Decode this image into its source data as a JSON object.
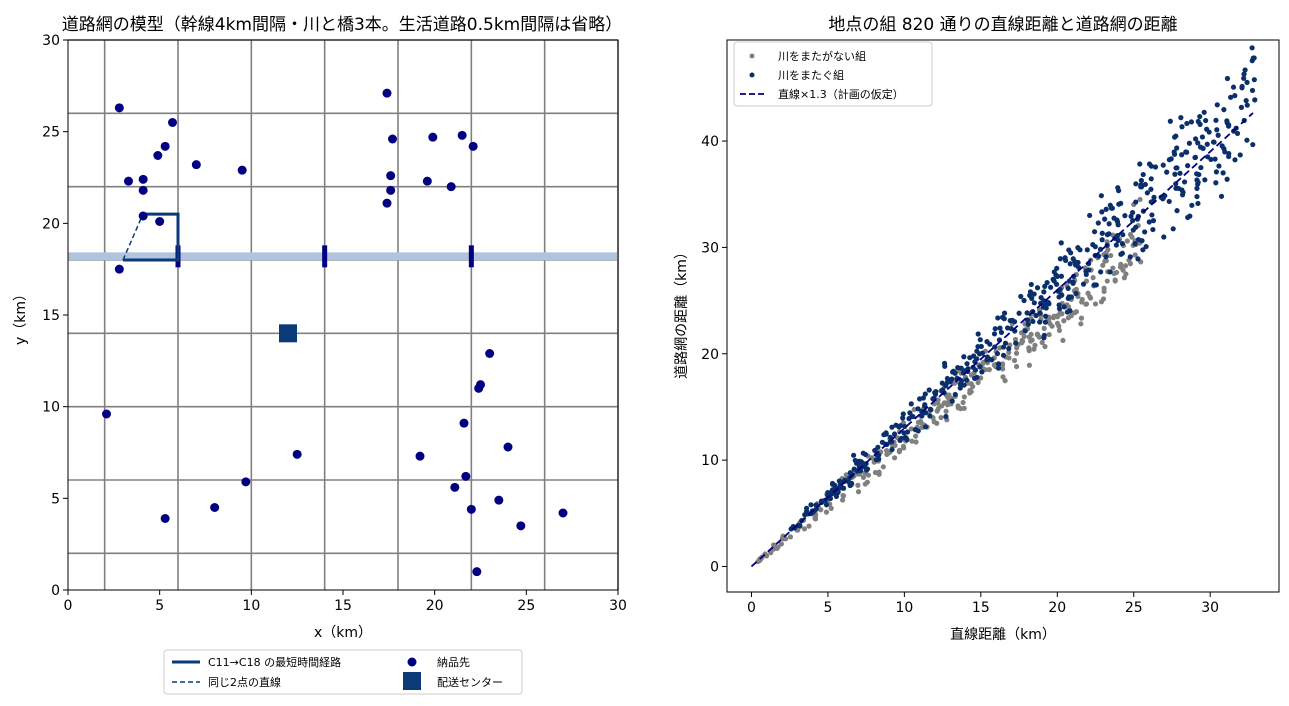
{
  "chart_data": [
    {
      "type": "scatter",
      "title": "道路網の模型（幹線4km間隔・川と橋3本。生活道路0.5km間隔は省略）",
      "xlabel": "x（km）",
      "ylabel": "y（km）",
      "xlim": [
        0,
        30
      ],
      "ylim": [
        0,
        30
      ],
      "xticks": [
        "0",
        "5",
        "10",
        "15",
        "20",
        "25",
        "30"
      ],
      "yticks": [
        "0",
        "5",
        "10",
        "15",
        "20",
        "25",
        "30"
      ],
      "grid": false,
      "legend_position": "below",
      "colors": {
        "road": "#808080",
        "river": "#b0c4de",
        "route": "#0a3a78",
        "points": "#000080",
        "center": "#0a3a78"
      },
      "roads": {
        "x": [
          2,
          6,
          10,
          14,
          18,
          22,
          26,
          30
        ],
        "y": [
          2,
          6,
          10,
          14,
          18,
          22,
          26,
          30
        ]
      },
      "river_y": 18.2,
      "bridges_x": [
        6,
        14,
        22
      ],
      "route": {
        "name": "C11→C18 の最短時間経路",
        "points": [
          [
            3,
            18
          ],
          [
            6,
            18
          ],
          [
            6,
            20.5
          ],
          [
            4,
            20.5
          ],
          [
            4,
            20.3
          ]
        ]
      },
      "straight_line": {
        "name": "同じ2点の直線",
        "points": [
          [
            3,
            18
          ],
          [
            4,
            20.3
          ]
        ]
      },
      "center": {
        "name": "配送センター",
        "x": 12,
        "y": 14
      },
      "deliveries": {
        "name": "納品先",
        "points": [
          [
            2.8,
            26.3
          ],
          [
            3.3,
            22.3
          ],
          [
            4.1,
            22.4
          ],
          [
            4.1,
            21.8
          ],
          [
            4.1,
            20.4
          ],
          [
            4.9,
            23.7
          ],
          [
            5.3,
            24.2
          ],
          [
            5.7,
            25.5
          ],
          [
            5,
            20.1
          ],
          [
            7,
            23.2
          ],
          [
            9.5,
            22.9
          ],
          [
            2.8,
            17.5
          ],
          [
            17.4,
            27.1
          ],
          [
            17.7,
            24.6
          ],
          [
            17.6,
            22.6
          ],
          [
            17.6,
            21.8
          ],
          [
            17.4,
            21.1
          ],
          [
            19.6,
            22.3
          ],
          [
            19.9,
            24.7
          ],
          [
            20.9,
            22
          ],
          [
            21.5,
            24.8
          ],
          [
            22.1,
            24.2
          ],
          [
            2.1,
            9.6
          ],
          [
            5.3,
            3.9
          ],
          [
            8,
            4.5
          ],
          [
            9.7,
            5.9
          ],
          [
            12.5,
            7.4
          ],
          [
            19.2,
            7.3
          ],
          [
            21.1,
            5.6
          ],
          [
            21.7,
            6.2
          ],
          [
            21.6,
            9.1
          ],
          [
            22,
            4.4
          ],
          [
            22.3,
            1
          ],
          [
            22.4,
            11
          ],
          [
            22.5,
            11.2
          ],
          [
            23,
            12.9
          ],
          [
            23.5,
            4.9
          ],
          [
            24,
            7.8
          ],
          [
            24.7,
            3.5
          ],
          [
            27,
            4.2
          ]
        ]
      }
    },
    {
      "type": "scatter",
      "title": "地点の組 820 通りの直線距離と道路網の距離",
      "xlabel": "直線距離（km）",
      "ylabel": "道路網の距離（km）",
      "xlim": [
        -1.6,
        34.5
      ],
      "ylim": [
        -2.4,
        49.5
      ],
      "xticks": [
        "0",
        "5",
        "10",
        "15",
        "20",
        "25",
        "30"
      ],
      "yticks": [
        "0",
        "10",
        "20",
        "30",
        "40"
      ],
      "grid": false,
      "legend_position": "top-left",
      "series": [
        {
          "name": "川をまたがない組",
          "color": "#808080",
          "n": 330,
          "ratio_mean": 1.2,
          "ratio_spread": 0.1,
          "x_range": [
            0.3,
            25.5
          ]
        },
        {
          "name": "川をまたぐ組",
          "color": "#0a2f6b",
          "n": 490,
          "ratio_mean": 1.32,
          "ratio_spread": 0.12,
          "x_range": [
            2.5,
            33
          ]
        }
      ],
      "reference_line": {
        "name": "直線×1.3（計画の仮定）",
        "slope": 1.3,
        "x": [
          0,
          32.8
        ],
        "color": "#000080"
      }
    }
  ]
}
